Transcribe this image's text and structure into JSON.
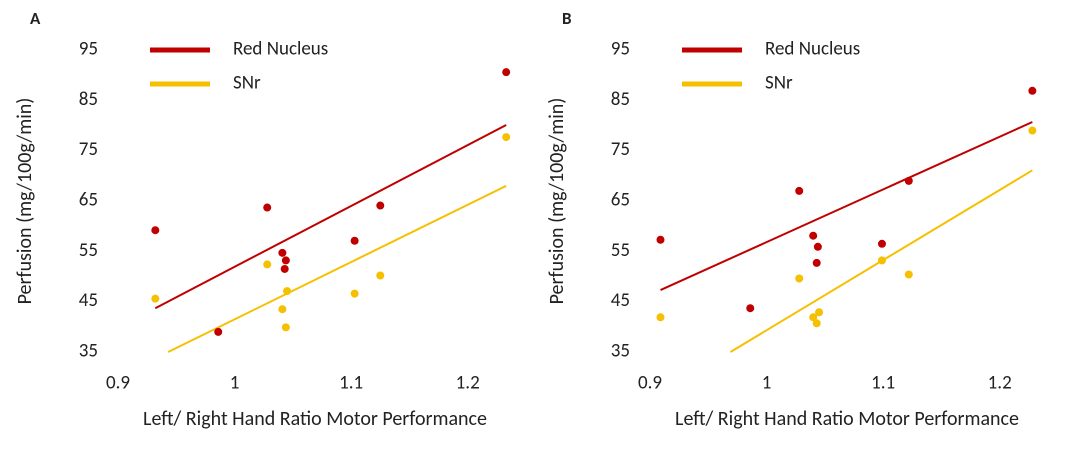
{
  "chart_data": [
    {
      "type": "scatter",
      "panel_label": "A",
      "x_label": "Left/ Right Hand Ratio Motor Performance",
      "y_label": "Perfusion (mg/100g/min)",
      "xlim": [
        0.9,
        1.25
      ],
      "xticks": [
        0.9,
        1,
        1.1,
        1.2
      ],
      "ylim": [
        35,
        95
      ],
      "yticks": [
        35,
        45,
        55,
        65,
        75,
        85,
        95
      ],
      "series": [
        {
          "name": "Red Nucleus",
          "color": "#c00000",
          "x": [
            0.932,
            1.028,
            1.041,
            1.044,
            1.043,
            0.986,
            1.103,
            1.125,
            1.233
          ],
          "values": [
            59.2,
            63.7,
            54.7,
            53.2,
            51.5,
            39,
            57.1,
            64.1,
            90.6
          ],
          "trend": {
            "x": [
              0.932,
              1.233
            ],
            "values": [
              43.7,
              80.1
            ]
          }
        },
        {
          "name": "SNr",
          "color": "#f5c000",
          "x": [
            0.932,
            1.028,
            1.041,
            1.045,
            1.044,
            1.103,
            1.125,
            1.233
          ],
          "values": [
            45.6,
            52.4,
            43.5,
            47.1,
            39.9,
            46.6,
            50.2,
            77.7
          ],
          "trend": {
            "x": [
              0.943,
              1.233
            ],
            "values": [
              35,
              68
            ]
          }
        }
      ]
    },
    {
      "type": "scatter",
      "panel_label": "B",
      "x_label": "Left/ Right Hand Ratio Motor Performance",
      "y_label": "Perfusion (mg/100g/min)",
      "xlim": [
        0.9,
        1.25
      ],
      "xticks": [
        0.9,
        1,
        1.1,
        1.2
      ],
      "ylim": [
        35,
        95
      ],
      "yticks": [
        35,
        45,
        55,
        65,
        75,
        85,
        95
      ],
      "series": [
        {
          "name": "Red Nucleus",
          "color": "#c00000",
          "x": [
            0.909,
            0.986,
            1.028,
            1.04,
            1.044,
            1.043,
            1.099,
            1.122,
            1.228
          ],
          "values": [
            57.3,
            43.7,
            67,
            58.1,
            55.9,
            52.7,
            56.5,
            69,
            86.9
          ],
          "trend": {
            "x": [
              0.909,
              1.228
            ],
            "values": [
              47.3,
              80.7
            ]
          }
        },
        {
          "name": "SNr",
          "color": "#f5c000",
          "x": [
            0.909,
            1.028,
            1.04,
            1.045,
            1.043,
            1.099,
            1.122,
            1.228
          ],
          "values": [
            41.9,
            49.6,
            41.9,
            42.9,
            40.7,
            53.2,
            50.4,
            79
          ],
          "trend": {
            "x": [
              0.969,
              1.228
            ],
            "values": [
              35,
              71.1
            ]
          }
        }
      ]
    }
  ]
}
